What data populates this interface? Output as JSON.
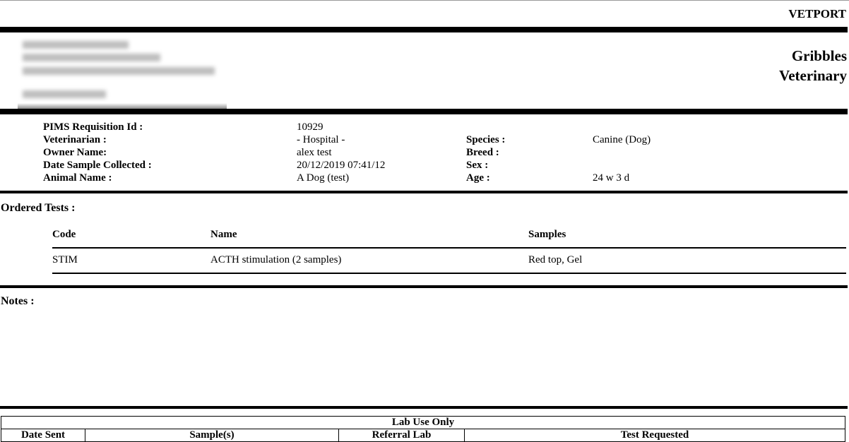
{
  "header": {
    "brand": "VETPORT",
    "lab_name_line1": "Gribbles",
    "lab_name_line2": "Veterinary"
  },
  "details": {
    "requisition_label": "PIMS Requisition Id :",
    "requisition_value": "10929",
    "vet_label": "Veterinarian :",
    "vet_value": "- Hospital -",
    "owner_label": "Owner Name:",
    "owner_value": "alex test",
    "date_label": "Date Sample Collected :",
    "date_value": "20/12/2019 07:41/12",
    "animal_label": "Animal Name :",
    "animal_value": "A Dog (test)",
    "species_label": "Species :",
    "species_value": "Canine (Dog)",
    "breed_label": "Breed :",
    "sex_label": "Sex :",
    "age_label": "Age :",
    "age_value": "24 w 3 d"
  },
  "ordered_tests": {
    "title": "Ordered Tests :",
    "columns": [
      "Code",
      "Name",
      "Samples"
    ],
    "rows": [
      {
        "code": "STIM",
        "name": "ACTH stimulation (2 samples)",
        "samples": "Red top, Gel"
      }
    ]
  },
  "notes": {
    "title": "Notes :"
  },
  "lab_use": {
    "title": "Lab Use Only",
    "columns": [
      "Date Sent",
      "Sample(s)",
      "Referral Lab",
      "Test Requested"
    ]
  }
}
